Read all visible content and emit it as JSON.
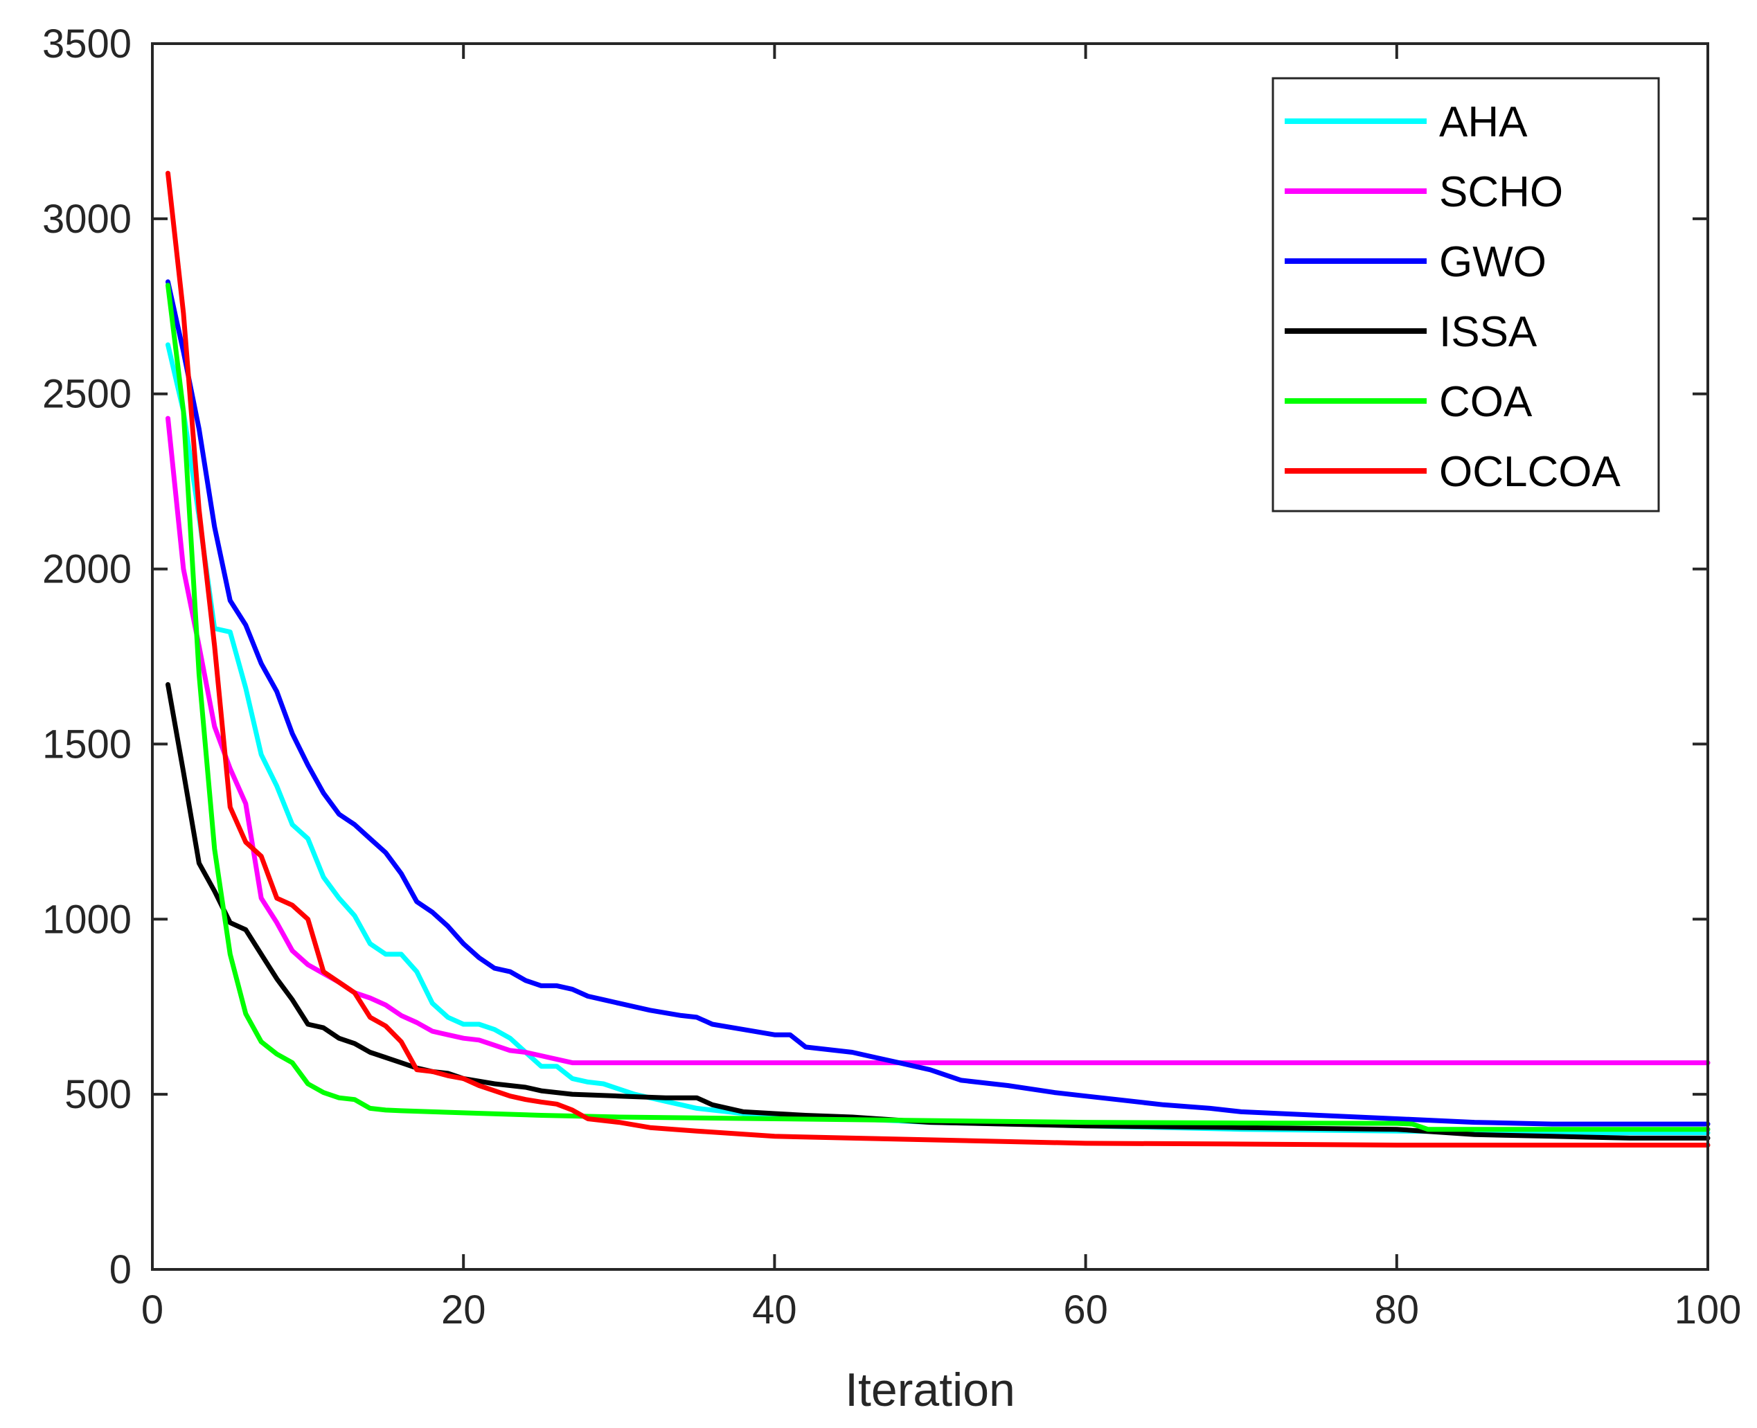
{
  "chart_data": {
    "type": "line",
    "xlabel": "Iteration",
    "ylabel": "",
    "xlim": [
      0,
      100
    ],
    "ylim": [
      0,
      3500
    ],
    "xticks": [
      "0",
      "20",
      "40",
      "60",
      "80",
      "100"
    ],
    "yticks": [
      "0",
      "500",
      "1000",
      "1500",
      "2000",
      "2500",
      "3000",
      "3500"
    ],
    "grid": false,
    "legend_position": "top-right",
    "series": [
      {
        "name": "AHA",
        "color": "#00ffff",
        "points": [
          [
            1,
            2640
          ],
          [
            2,
            2450
          ],
          [
            3,
            2150
          ],
          [
            4,
            1830
          ],
          [
            5,
            1820
          ],
          [
            6,
            1660
          ],
          [
            7,
            1470
          ],
          [
            8,
            1380
          ],
          [
            9,
            1270
          ],
          [
            10,
            1230
          ],
          [
            11,
            1120
          ],
          [
            12,
            1060
          ],
          [
            13,
            1010
          ],
          [
            14,
            930
          ],
          [
            15,
            900
          ],
          [
            16,
            900
          ],
          [
            17,
            850
          ],
          [
            18,
            760
          ],
          [
            19,
            720
          ],
          [
            20,
            700
          ],
          [
            21,
            700
          ],
          [
            22,
            685
          ],
          [
            23,
            660
          ],
          [
            24,
            620
          ],
          [
            25,
            580
          ],
          [
            26,
            580
          ],
          [
            27,
            545
          ],
          [
            28,
            535
          ],
          [
            29,
            530
          ],
          [
            30,
            515
          ],
          [
            31,
            500
          ],
          [
            32,
            490
          ],
          [
            33,
            480
          ],
          [
            34,
            470
          ],
          [
            35,
            460
          ],
          [
            36,
            455
          ],
          [
            37,
            450
          ],
          [
            38,
            445
          ],
          [
            40,
            440
          ],
          [
            45,
            430
          ],
          [
            50,
            420
          ],
          [
            55,
            415
          ],
          [
            60,
            410
          ],
          [
            70,
            400
          ],
          [
            80,
            395
          ],
          [
            90,
            390
          ],
          [
            100,
            390
          ]
        ]
      },
      {
        "name": "SCHO",
        "color": "#ff00ff",
        "points": [
          [
            1,
            2430
          ],
          [
            2,
            2000
          ],
          [
            3,
            1780
          ],
          [
            4,
            1550
          ],
          [
            5,
            1430
          ],
          [
            6,
            1330
          ],
          [
            7,
            1060
          ],
          [
            8,
            990
          ],
          [
            9,
            910
          ],
          [
            10,
            870
          ],
          [
            11,
            845
          ],
          [
            12,
            820
          ],
          [
            13,
            790
          ],
          [
            14,
            775
          ],
          [
            15,
            755
          ],
          [
            16,
            725
          ],
          [
            17,
            705
          ],
          [
            18,
            680
          ],
          [
            19,
            670
          ],
          [
            20,
            660
          ],
          [
            21,
            655
          ],
          [
            22,
            640
          ],
          [
            23,
            625
          ],
          [
            24,
            620
          ],
          [
            25,
            610
          ],
          [
            26,
            600
          ],
          [
            27,
            590
          ],
          [
            30,
            590
          ],
          [
            40,
            590
          ],
          [
            60,
            590
          ],
          [
            80,
            590
          ],
          [
            100,
            590
          ]
        ]
      },
      {
        "name": "GWO",
        "color": "#0000ff",
        "points": [
          [
            1,
            2820
          ],
          [
            2,
            2620
          ],
          [
            3,
            2400
          ],
          [
            4,
            2120
          ],
          [
            5,
            1910
          ],
          [
            6,
            1840
          ],
          [
            7,
            1730
          ],
          [
            8,
            1650
          ],
          [
            9,
            1530
          ],
          [
            10,
            1440
          ],
          [
            11,
            1360
          ],
          [
            12,
            1300
          ],
          [
            13,
            1270
          ],
          [
            14,
            1230
          ],
          [
            15,
            1190
          ],
          [
            16,
            1130
          ],
          [
            17,
            1050
          ],
          [
            18,
            1020
          ],
          [
            19,
            980
          ],
          [
            20,
            930
          ],
          [
            21,
            890
          ],
          [
            22,
            860
          ],
          [
            23,
            850
          ],
          [
            24,
            825
          ],
          [
            25,
            810
          ],
          [
            26,
            810
          ],
          [
            27,
            800
          ],
          [
            28,
            780
          ],
          [
            29,
            770
          ],
          [
            30,
            760
          ],
          [
            32,
            740
          ],
          [
            34,
            725
          ],
          [
            35,
            720
          ],
          [
            36,
            700
          ],
          [
            38,
            685
          ],
          [
            40,
            670
          ],
          [
            41,
            670
          ],
          [
            42,
            635
          ],
          [
            45,
            620
          ],
          [
            48,
            590
          ],
          [
            50,
            570
          ],
          [
            52,
            540
          ],
          [
            55,
            525
          ],
          [
            58,
            505
          ],
          [
            60,
            495
          ],
          [
            62,
            485
          ],
          [
            65,
            470
          ],
          [
            68,
            460
          ],
          [
            70,
            450
          ],
          [
            75,
            440
          ],
          [
            80,
            430
          ],
          [
            85,
            420
          ],
          [
            90,
            415
          ],
          [
            95,
            415
          ],
          [
            100,
            415
          ]
        ]
      },
      {
        "name": "ISSA",
        "color": "#000000",
        "points": [
          [
            1,
            1670
          ],
          [
            2,
            1420
          ],
          [
            3,
            1160
          ],
          [
            4,
            1080
          ],
          [
            5,
            990
          ],
          [
            6,
            970
          ],
          [
            7,
            900
          ],
          [
            8,
            830
          ],
          [
            9,
            770
          ],
          [
            10,
            700
          ],
          [
            11,
            690
          ],
          [
            12,
            660
          ],
          [
            13,
            645
          ],
          [
            14,
            620
          ],
          [
            15,
            605
          ],
          [
            16,
            590
          ],
          [
            17,
            575
          ],
          [
            18,
            565
          ],
          [
            19,
            560
          ],
          [
            20,
            545
          ],
          [
            22,
            530
          ],
          [
            24,
            520
          ],
          [
            25,
            510
          ],
          [
            27,
            500
          ],
          [
            30,
            495
          ],
          [
            33,
            490
          ],
          [
            35,
            490
          ],
          [
            36,
            470
          ],
          [
            38,
            450
          ],
          [
            40,
            445
          ],
          [
            42,
            440
          ],
          [
            45,
            435
          ],
          [
            50,
            420
          ],
          [
            60,
            410
          ],
          [
            70,
            405
          ],
          [
            80,
            400
          ],
          [
            85,
            385
          ],
          [
            90,
            380
          ],
          [
            95,
            375
          ],
          [
            100,
            375
          ]
        ]
      },
      {
        "name": "COA",
        "color": "#00ff00",
        "points": [
          [
            1,
            2810
          ],
          [
            2,
            2450
          ],
          [
            3,
            1700
          ],
          [
            4,
            1200
          ],
          [
            5,
            900
          ],
          [
            6,
            730
          ],
          [
            7,
            650
          ],
          [
            8,
            615
          ],
          [
            9,
            590
          ],
          [
            10,
            530
          ],
          [
            11,
            505
          ],
          [
            12,
            490
          ],
          [
            13,
            485
          ],
          [
            14,
            460
          ],
          [
            15,
            455
          ],
          [
            16,
            453
          ],
          [
            18,
            450
          ],
          [
            20,
            447
          ],
          [
            25,
            440
          ],
          [
            30,
            435
          ],
          [
            40,
            430
          ],
          [
            50,
            425
          ],
          [
            60,
            420
          ],
          [
            70,
            418
          ],
          [
            80,
            417
          ],
          [
            81,
            415
          ],
          [
            82,
            400
          ],
          [
            90,
            400
          ],
          [
            100,
            400
          ]
        ]
      },
      {
        "name": "OCLCOA",
        "color": "#ff0000",
        "points": [
          [
            1,
            3130
          ],
          [
            2,
            2730
          ],
          [
            3,
            2170
          ],
          [
            4,
            1780
          ],
          [
            5,
            1320
          ],
          [
            6,
            1220
          ],
          [
            7,
            1180
          ],
          [
            8,
            1060
          ],
          [
            9,
            1040
          ],
          [
            10,
            1000
          ],
          [
            11,
            850
          ],
          [
            12,
            820
          ],
          [
            13,
            790
          ],
          [
            14,
            720
          ],
          [
            15,
            695
          ],
          [
            16,
            650
          ],
          [
            17,
            570
          ],
          [
            18,
            565
          ],
          [
            19,
            553
          ],
          [
            20,
            545
          ],
          [
            21,
            525
          ],
          [
            22,
            510
          ],
          [
            23,
            495
          ],
          [
            24,
            485
          ],
          [
            25,
            478
          ],
          [
            26,
            472
          ],
          [
            27,
            455
          ],
          [
            28,
            430
          ],
          [
            30,
            420
          ],
          [
            32,
            405
          ],
          [
            35,
            395
          ],
          [
            40,
            380
          ],
          [
            45,
            375
          ],
          [
            50,
            370
          ],
          [
            60,
            360
          ],
          [
            70,
            358
          ],
          [
            80,
            355
          ],
          [
            90,
            355
          ],
          [
            100,
            355
          ]
        ]
      }
    ]
  }
}
